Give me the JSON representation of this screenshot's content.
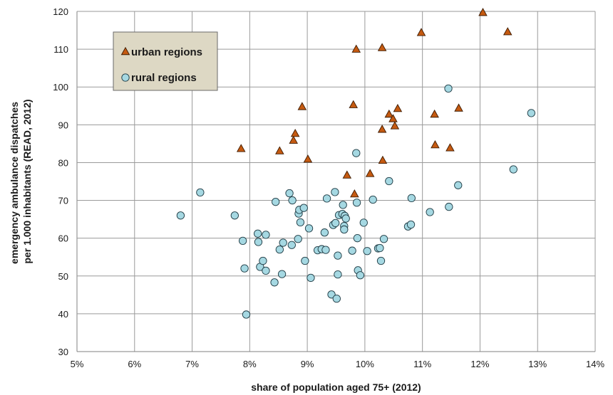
{
  "chart_data": {
    "type": "scatter",
    "xlabel": "share of population aged 75+ (2012)",
    "ylabel_lines": [
      "emergency ambulance dispatches",
      "per 1.000 inhabitants (READ, 2012)"
    ],
    "xlim": [
      0.05,
      0.14
    ],
    "ylim": [
      30,
      120
    ],
    "x_ticks": [
      0.05,
      0.06,
      0.07,
      0.08,
      0.09,
      0.1,
      0.11,
      0.12,
      0.13,
      0.14
    ],
    "x_tick_labels": [
      "5%",
      "6%",
      "7%",
      "8%",
      "9%",
      "10%",
      "11%",
      "12%",
      "13%",
      "14%"
    ],
    "y_ticks": [
      30,
      40,
      50,
      60,
      70,
      80,
      90,
      100,
      110,
      120
    ],
    "y_tick_labels": [
      "30",
      "40",
      "50",
      "60",
      "70",
      "80",
      "90",
      "100",
      "110",
      "120"
    ],
    "grid": true,
    "legend_position": "top-left",
    "series": [
      {
        "name": "urban regions",
        "marker": "triangle",
        "color": "#c55a11",
        "points": [
          [
            0.0785,
            83.6
          ],
          [
            0.0852,
            83.0
          ],
          [
            0.0876,
            85.8
          ],
          [
            0.0879,
            87.6
          ],
          [
            0.0891,
            94.7
          ],
          [
            0.0901,
            80.8
          ],
          [
            0.0969,
            76.6
          ],
          [
            0.098,
            95.2
          ],
          [
            0.0982,
            71.6
          ],
          [
            0.0985,
            109.9
          ],
          [
            0.1009,
            77.0
          ],
          [
            0.103,
            110.3
          ],
          [
            0.103,
            88.7
          ],
          [
            0.1031,
            80.5
          ],
          [
            0.1042,
            92.7
          ],
          [
            0.1049,
            91.5
          ],
          [
            0.1052,
            89.6
          ],
          [
            0.1057,
            94.2
          ],
          [
            0.1098,
            114.3
          ],
          [
            0.1121,
            92.7
          ],
          [
            0.1122,
            84.6
          ],
          [
            0.1148,
            83.8
          ],
          [
            0.1163,
            94.3
          ],
          [
            0.1205,
            119.6
          ],
          [
            0.1248,
            114.5
          ]
        ]
      },
      {
        "name": "rural regions",
        "marker": "circle",
        "color": "#a5d8e2",
        "points": [
          [
            0.068,
            66.0
          ],
          [
            0.0714,
            72.1
          ],
          [
            0.0774,
            66.0
          ],
          [
            0.0788,
            59.3
          ],
          [
            0.0791,
            52.0
          ],
          [
            0.0794,
            39.8
          ],
          [
            0.0814,
            61.2
          ],
          [
            0.0815,
            59.0
          ],
          [
            0.0818,
            52.4
          ],
          [
            0.0823,
            54.0
          ],
          [
            0.0828,
            51.4
          ],
          [
            0.0828,
            60.9
          ],
          [
            0.0843,
            48.3
          ],
          [
            0.0845,
            69.6
          ],
          [
            0.0852,
            57.0
          ],
          [
            0.0856,
            50.5
          ],
          [
            0.0858,
            58.8
          ],
          [
            0.0869,
            71.9
          ],
          [
            0.0873,
            58.2
          ],
          [
            0.0874,
            70.0
          ],
          [
            0.0884,
            59.8
          ],
          [
            0.0885,
            66.5
          ],
          [
            0.0886,
            67.5
          ],
          [
            0.0888,
            64.2
          ],
          [
            0.0894,
            68.0
          ],
          [
            0.0896,
            54.0
          ],
          [
            0.0903,
            62.6
          ],
          [
            0.0906,
            49.5
          ],
          [
            0.0918,
            56.8
          ],
          [
            0.0925,
            57.1
          ],
          [
            0.093,
            61.5
          ],
          [
            0.0932,
            56.9
          ],
          [
            0.0934,
            70.5
          ],
          [
            0.0942,
            45.1
          ],
          [
            0.0945,
            63.5
          ],
          [
            0.0948,
            72.2
          ],
          [
            0.0949,
            64.0
          ],
          [
            0.0951,
            44.0
          ],
          [
            0.0953,
            50.4
          ],
          [
            0.0953,
            55.4
          ],
          [
            0.0955,
            66.1
          ],
          [
            0.0961,
            66.4
          ],
          [
            0.0962,
            68.8
          ],
          [
            0.0964,
            63.2
          ],
          [
            0.0964,
            62.3
          ],
          [
            0.0965,
            65.9
          ],
          [
            0.0967,
            65.2
          ],
          [
            0.0978,
            56.7
          ],
          [
            0.0985,
            82.5
          ],
          [
            0.0986,
            69.4
          ],
          [
            0.0987,
            60.0
          ],
          [
            0.0988,
            51.5
          ],
          [
            0.0992,
            50.2
          ],
          [
            0.0998,
            64.1
          ],
          [
            0.1004,
            56.6
          ],
          [
            0.1014,
            70.2
          ],
          [
            0.1023,
            57.3
          ],
          [
            0.1026,
            57.4
          ],
          [
            0.1028,
            54.0
          ],
          [
            0.1033,
            59.8
          ],
          [
            0.1042,
            75.1
          ],
          [
            0.1075,
            63.1
          ],
          [
            0.108,
            63.6
          ],
          [
            0.1081,
            70.6
          ],
          [
            0.1113,
            66.9
          ],
          [
            0.1145,
            99.6
          ],
          [
            0.1146,
            68.3
          ],
          [
            0.1162,
            74.0
          ],
          [
            0.1258,
            78.2
          ],
          [
            0.1289,
            93.1
          ]
        ]
      }
    ]
  }
}
